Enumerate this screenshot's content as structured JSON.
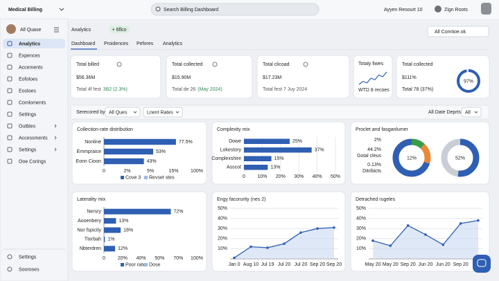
{
  "header": {
    "app_title": "Medical Billing",
    "search_placeholder": "Search Billing Dashboard",
    "account": "Ayyen Resourt 10",
    "user": "Zign Roots"
  },
  "sidebar": {
    "user": "All Quase",
    "items": [
      "Analytics",
      "Expences",
      "Accements",
      "Eofoloes",
      "Eosloes",
      "Comloments",
      "Settings",
      "Outbles",
      "Accessments",
      "Settings",
      "Ooe Corings"
    ],
    "footer_items": [
      "Settings",
      "Sooroses"
    ]
  },
  "page": {
    "title": "Analytics",
    "badge": "+ 6flco",
    "action": "All Comtioe.ok",
    "tabs": [
      "Dashboard",
      "Proidences",
      "Pefores",
      "Analytics"
    ]
  },
  "kpis": [
    {
      "title": "Total billed",
      "value": "$56.36M",
      "note": "Total 4f fest",
      "delta": "3B2 (2.3%)"
    },
    {
      "title": "Total collected",
      "value": "$15.90M",
      "note": "Total de 26",
      "delta": "(May 2024)"
    },
    {
      "title": "Total clicoad",
      "value": "$17.23M",
      "note": "Total fest 7 Juy 2024"
    }
  ],
  "trend_card": {
    "title": "Totaly fiwes",
    "note": "WTD 8 recoes",
    "values": [
      3,
      5,
      4,
      7,
      6,
      9,
      8,
      11
    ]
  },
  "rate_card": {
    "title": "Total collected",
    "value": "$111%",
    "note": "Total 78 (37%)",
    "gauge_value": 97,
    "gauge_label": "97%"
  },
  "filters": {
    "label": "Serecored by:",
    "select1": "All Ques",
    "select2": "Lnent Rates",
    "date": "All Date Deprts",
    "select3": "All"
  },
  "charts": [
    {
      "type": "hbar",
      "title": "Collection-rate distribution",
      "categories": [
        "Nonline",
        "Emmpraice",
        "Eonn Cioon"
      ],
      "values": [
        77.5,
        53,
        43
      ],
      "value_labels": [
        "77.5%",
        "53%",
        "43%"
      ],
      "color": "#2f5fb3",
      "xlim": [
        0,
        100
      ],
      "x_axis_labels": [
        "0",
        "2%",
        "5%",
        "15%",
        "100%"
      ],
      "legend": [
        {
          "name": "Cove 3",
          "color": "#2f5fb3"
        },
        {
          "name": "Revset stes",
          "color": "#9db8e4"
        }
      ]
    },
    {
      "type": "hbar",
      "title": "Complexity mix",
      "categories": [
        "Dowe",
        "Lokestory",
        "Complexshire",
        "Asscot"
      ],
      "values": [
        25,
        37,
        15,
        13
      ],
      "value_labels": [
        "25%",
        "37%",
        "15%",
        "13%"
      ],
      "color": "#2f5fb3",
      "xlim": [
        0,
        50
      ],
      "xticks": [
        0,
        {
          "value": 10,
          "label": "10%"
        },
        {
          "value": 20,
          "label": "20%"
        },
        {
          "value": 30,
          "label": "30%"
        },
        {
          "value": 40,
          "label": "40%"
        },
        {
          "value": 50,
          "label": "50%"
        }
      ]
    },
    {
      "type": "donut_pair",
      "title": "Proclet and fasganlumer",
      "labels": [
        "2%",
        "44.2%",
        "Gotal cleus",
        "0.13%",
        "Ditribicts"
      ],
      "donuts": [
        {
          "center": "12%",
          "segments": [
            {
              "value": 12,
              "color": "#3a9a4b"
            },
            {
              "value": 18,
              "color": "#e8893a"
            },
            {
              "value": 70,
              "color": "#2f5fb3"
            }
          ]
        },
        {
          "center": "52%",
          "segments": [
            {
              "value": 52,
              "color": "#2f5fb3"
            },
            {
              "value": 48,
              "color": "#c9ced6"
            }
          ]
        }
      ]
    },
    {
      "type": "hbar",
      "title": "Laterality mix",
      "categories": [
        "Nersry",
        "Aooenbery",
        "Nor fspicity",
        "Tterbah",
        "Nbterdren"
      ],
      "values": [
        72,
        13,
        18,
        1,
        12
      ],
      "value_labels": [
        "72%",
        "13%",
        "18%",
        "1%",
        "12%"
      ],
      "color": "#2f5fb3",
      "xlim": [
        0,
        100
      ],
      "x_axis_labels": [
        "0",
        "20%",
        "40%",
        "50%",
        "70%",
        "100%"
      ],
      "legend": [
        {
          "name": "Poor rates",
          "color": "#2f5fb3"
        },
        {
          "name": "Dose",
          "color": "#9db8e4"
        }
      ]
    },
    {
      "type": "line",
      "title": "Engy facorurity (nes 2)",
      "x": [
        "Jan 0",
        "Aug 10",
        "Jul 19",
        "Jul 20",
        "Jul 20",
        "Sep 20",
        "Sep 20"
      ],
      "values": [
        1,
        12,
        11,
        15,
        26,
        30,
        31
      ],
      "color": "#2f5fb3",
      "ylim": [
        0,
        50
      ],
      "yticks": [
        {
          "value": 10,
          "label": "10%"
        },
        {
          "value": 20,
          "label": "20%"
        },
        {
          "value": 30,
          "label": "30%"
        },
        {
          "value": 40,
          "label": "40%"
        },
        {
          "value": 50,
          "label": "50%"
        }
      ]
    },
    {
      "type": "line",
      "title": "Detrached rugeles",
      "x": [
        "May 20",
        "May 20",
        "Sep 20",
        "Jun 20",
        "Jun 20",
        "Sep 20",
        null
      ],
      "values": [
        18,
        13,
        33,
        24,
        14,
        35,
        38
      ],
      "color": "#2f5fb3",
      "ylim": [
        0,
        50
      ],
      "yticks": [
        {
          "value": 10,
          "label": "10%"
        },
        {
          "value": 20,
          "label": "20%"
        },
        {
          "value": 30,
          "label": "30%"
        },
        {
          "value": 40,
          "label": "40%"
        },
        {
          "value": 50,
          "label": "50%"
        }
      ]
    }
  ]
}
